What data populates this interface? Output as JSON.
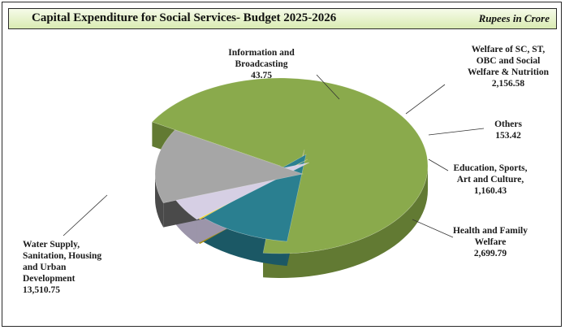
{
  "header": {
    "title": "Capital Expenditure for Social Services- Budget 2025-2026",
    "units": "Rupees in Crore"
  },
  "chart_data": {
    "type": "pie",
    "title": "Capital Expenditure for Social Services- Budget 2025-2026",
    "unit": "Rupees in Crore",
    "slices": [
      {
        "label": [
          "Water Supply,",
          "Sanitation, Housing",
          "and Urban",
          "Development"
        ],
        "value_text": "13,510.75",
        "value": 13510.75,
        "color": "#8aaa4c",
        "side": "#627a33"
      },
      {
        "label": [
          "Information and",
          "Broadcasting"
        ],
        "value_text": "43.75",
        "value": 43.75,
        "color": "#c49a78",
        "side": "#8e6b50"
      },
      {
        "label": [
          "Welfare of SC, ST,",
          "OBC and Social",
          "Welfare & Nutrition"
        ],
        "value_text": "2,156.58",
        "value": 2156.58,
        "color": "#2a7f90",
        "side": "#1b5865"
      },
      {
        "label": [
          "Others"
        ],
        "value_text": "153.42",
        "value": 153.42,
        "color": "#f2d21e",
        "side": "#a8900f"
      },
      {
        "label": [
          "Education, Sports,",
          "Art and Culture,"
        ],
        "value_text": "1,160.43",
        "value": 1160.43,
        "color": "#d6cfe4",
        "side": "#9c95aa"
      },
      {
        "label": [
          "Health and Family",
          "Welfare"
        ],
        "value_text": "2,699.79",
        "value": 2699.79,
        "color": "#a6a6a6",
        "side": "#4a4a4a"
      }
    ]
  }
}
